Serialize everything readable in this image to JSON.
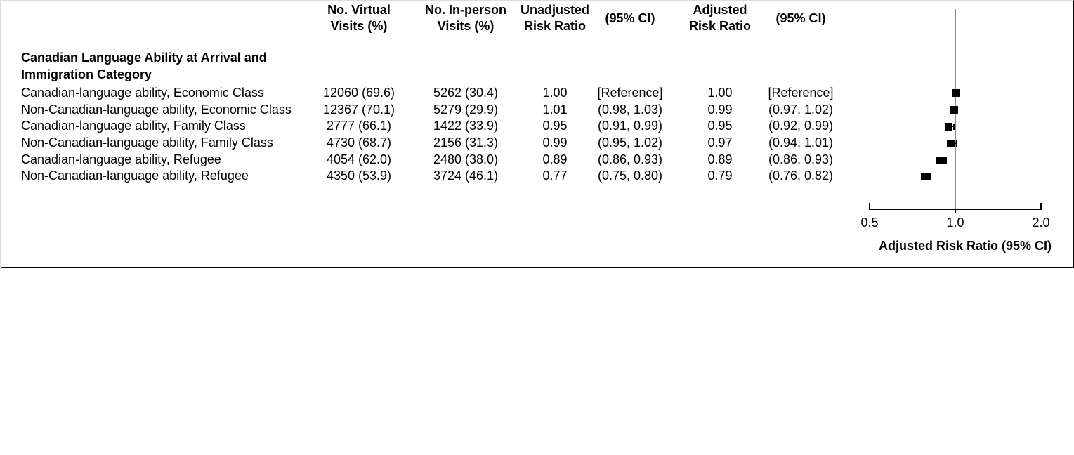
{
  "figure": {
    "table": {
      "headers": [
        {
          "lines": [
            "No. Virtual",
            "Visits (%)"
          ]
        },
        {
          "lines": [
            "No. In-person",
            "Visits (%)"
          ]
        },
        {
          "lines": [
            "Unadjusted",
            "Risk Ratio"
          ]
        },
        {
          "lines": [
            "(95% CI)"
          ]
        },
        {
          "lines": [
            "Adjusted",
            "Risk Ratio"
          ]
        },
        {
          "lines": [
            "(95% CI)"
          ]
        }
      ],
      "group_heading_lines": [
        "Canadian Language Ability at Arrival and",
        "Immigration Category"
      ],
      "rows": [
        {
          "label": "Canadian-language ability, Economic Class",
          "virtual": "12060 (69.6)",
          "inperson": "5262 (30.4)",
          "unadj_rr": "1.00",
          "unadj_ci": "[Reference]",
          "adj_rr": "1.00",
          "adj_ci": "[Reference]"
        },
        {
          "label": "Non-Canadian-language ability, Economic Class",
          "virtual": "12367 (70.1)",
          "inperson": "5279 (29.9)",
          "unadj_rr": "1.01",
          "unadj_ci": "(0.98, 1.03)",
          "adj_rr": "0.99",
          "adj_ci": "(0.97, 1.02)"
        },
        {
          "label": "Canadian-language ability, Family Class",
          "virtual": "2777 (66.1)",
          "inperson": "1422 (33.9)",
          "unadj_rr": "0.95",
          "unadj_ci": "(0.91, 0.99)",
          "adj_rr": "0.95",
          "adj_ci": "(0.92, 0.99)"
        },
        {
          "label": "Non-Canadian-language ability, Family Class",
          "virtual": "4730 (68.7)",
          "inperson": "2156 (31.3)",
          "unadj_rr": "0.99",
          "unadj_ci": "(0.95, 1.02)",
          "adj_rr": "0.97",
          "adj_ci": "(0.94, 1.01)"
        },
        {
          "label": "Canadian-language ability, Refugee",
          "virtual": "4054 (62.0)",
          "inperson": "2480 (38.0)",
          "unadj_rr": "0.89",
          "unadj_ci": "(0.86, 0.93)",
          "adj_rr": "0.89",
          "adj_ci": "(0.86, 0.93)"
        },
        {
          "label": "Non-Canadian-language ability, Refugee",
          "virtual": "4350 (53.9)",
          "inperson": "3724 (46.1)",
          "unadj_rr": "0.77",
          "unadj_ci": "(0.75, 0.80)",
          "adj_rr": "0.79",
          "adj_ci": "(0.76, 0.82)"
        }
      ]
    },
    "axis": {
      "tick_labels": [
        "0.5",
        "1.0",
        "2.0"
      ],
      "title": "Adjusted Risk Ratio (95% CI)"
    }
  },
  "chart_data": {
    "type": "scatter",
    "subtype": "forest-plot",
    "title": "",
    "xlabel": "Adjusted Risk Ratio (95% CI)",
    "ylabel": "",
    "x_scale": "log",
    "xlim": [
      0.5,
      2.0
    ],
    "x_ticks": [
      0.5,
      1.0,
      2.0
    ],
    "reference_line_x": 1.0,
    "grid": false,
    "categories": [
      "Canadian-language ability, Economic Class",
      "Non-Canadian-language ability, Economic Class",
      "Canadian-language ability, Family Class",
      "Non-Canadian-language ability, Family Class",
      "Canadian-language ability, Refugee",
      "Non-Canadian-language ability, Refugee"
    ],
    "series": [
      {
        "name": "Adjusted Risk Ratio",
        "values": [
          1.0,
          0.99,
          0.95,
          0.97,
          0.89,
          0.79
        ],
        "ci_low": [
          null,
          0.97,
          0.92,
          0.94,
          0.86,
          0.76
        ],
        "ci_high": [
          null,
          1.02,
          0.99,
          1.01,
          0.93,
          0.82
        ]
      }
    ]
  },
  "colors": {
    "marker": "#000000",
    "reference_line": "#8c8c8c",
    "axis": "#000000",
    "border_dark": "#000000",
    "border_light": "#dcdcdc"
  }
}
